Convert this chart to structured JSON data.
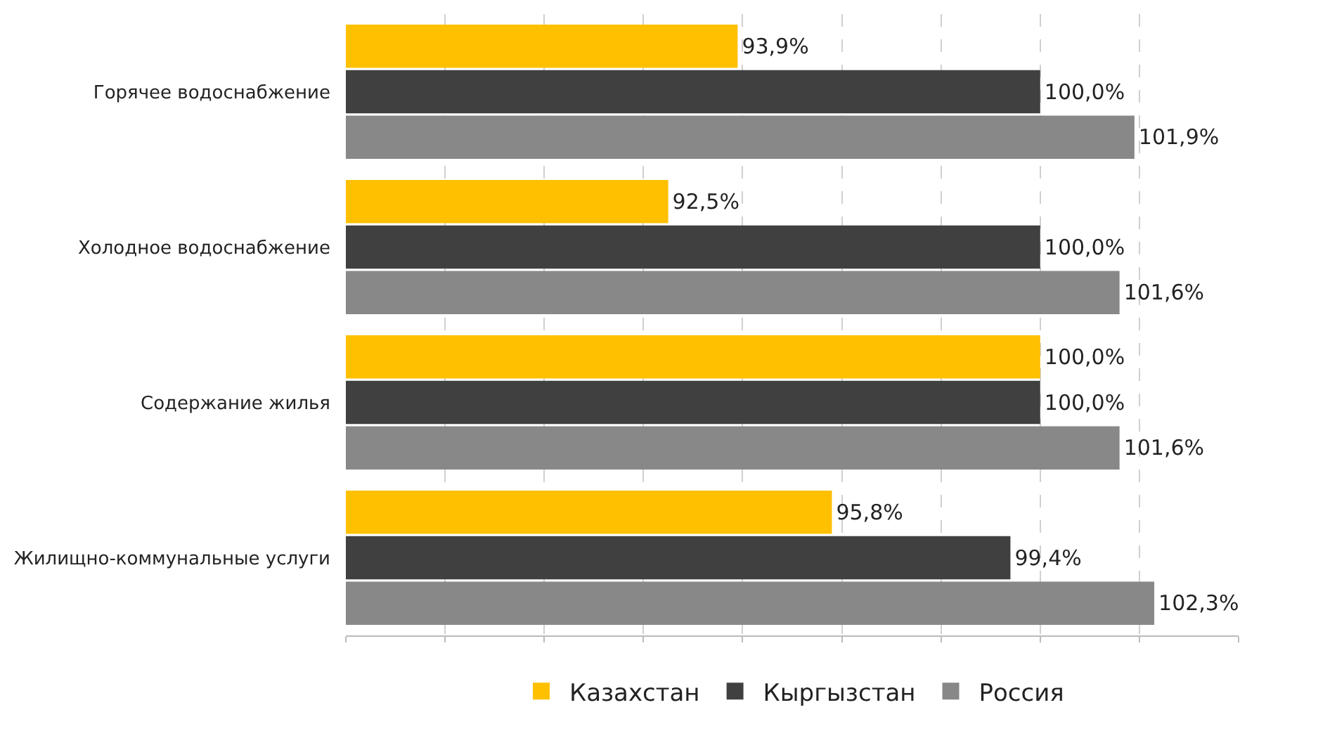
{
  "chart_data": {
    "type": "bar",
    "orientation": "horizontal",
    "categories": [
      "Горячее водоснабжение",
      "Холодное водоснабжение",
      "Содержание жилья",
      "Жилищно-коммунальные услуги"
    ],
    "series": [
      {
        "name": "Казахстан",
        "color": "#ffc000",
        "values": [
          93.9,
          92.5,
          100.0,
          95.8
        ],
        "value_labels": [
          "93,9%",
          "92,5%",
          "100,0%",
          "95,8%"
        ]
      },
      {
        "name": "Кыргызстан",
        "color": "#404040",
        "values": [
          100.0,
          100.0,
          100.0,
          99.4
        ],
        "value_labels": [
          "100,0%",
          "100,0%",
          "100,0%",
          "99,4%"
        ]
      },
      {
        "name": "Россия",
        "color": "#888888",
        "values": [
          101.9,
          101.6,
          101.6,
          102.3
        ],
        "value_labels": [
          "101,9%",
          "101,6%",
          "101,6%",
          "102,3%"
        ]
      }
    ],
    "xlim": [
      86,
      104
    ],
    "grid": "x",
    "legend": "bottom",
    "tick_labels": "y"
  }
}
